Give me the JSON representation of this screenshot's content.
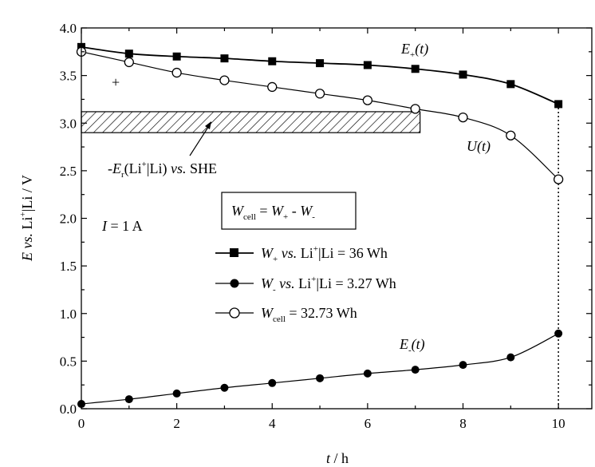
{
  "chart_data": {
    "type": "line",
    "xlabel": {
      "var": "t",
      "unit": " / h"
    },
    "ylabel": {
      "var1": "E",
      "vs": " vs. ",
      "li": "Li",
      "sup": "+",
      "rest": "|Li / V"
    },
    "xlim": [
      0,
      10.7
    ],
    "ylim": [
      0,
      4.0
    ],
    "xticks": [
      0,
      2,
      4,
      6,
      8,
      10
    ],
    "yticks": [
      "0.0",
      "0.5",
      "1.0",
      "1.5",
      "2.0",
      "2.5",
      "3.0",
      "3.5",
      "4.0"
    ],
    "series": [
      {
        "key": "eplus",
        "marker": "square",
        "x": [
          0,
          1,
          2,
          3,
          4,
          5,
          6,
          7,
          8,
          9,
          10
        ],
        "y": [
          3.8,
          3.73,
          3.7,
          3.68,
          3.65,
          3.63,
          3.61,
          3.57,
          3.51,
          3.41,
          3.2
        ]
      },
      {
        "key": "u",
        "marker": "circle-open",
        "x": [
          0,
          1,
          2,
          3,
          4,
          5,
          6,
          7,
          8,
          9,
          10
        ],
        "y": [
          3.75,
          3.64,
          3.53,
          3.45,
          3.38,
          3.31,
          3.24,
          3.15,
          3.06,
          2.87,
          2.41
        ]
      },
      {
        "key": "eminus",
        "marker": "circle-filled",
        "x": [
          0,
          1,
          2,
          3,
          4,
          5,
          6,
          7,
          8,
          9,
          10
        ],
        "y": [
          0.05,
          0.1,
          0.16,
          0.22,
          0.27,
          0.32,
          0.37,
          0.41,
          0.46,
          0.54,
          0.79
        ]
      }
    ],
    "band": {
      "x": [
        0,
        7.1
      ],
      "y": [
        2.9,
        3.12
      ]
    },
    "vline": {
      "x": 10,
      "y": [
        0,
        3.2
      ]
    },
    "stray_plus": {
      "x": 0.72,
      "y": 3.42,
      "text": "+"
    },
    "annotations": {
      "eplus": {
        "main": "E",
        "sub": "+",
        "rest": "(t)"
      },
      "u": {
        "main": "U",
        "rest": "(t)"
      },
      "eminus": {
        "main": "E",
        "sub": "-",
        "rest": "(t)"
      },
      "er": {
        "pre": "-",
        "main": "E",
        "sub": "r",
        "li": "(Li",
        "sup": "+",
        "rest": "|Li) ",
        "vs": "vs.",
        "she": " SHE"
      },
      "current": {
        "main": "I",
        "rest": " = 1 A"
      },
      "formula": {
        "w1": "W",
        "s1": "cell",
        "eq": " = ",
        "w2": "W",
        "s2": "+",
        "minus": " - ",
        "w3": "W",
        "s3": "-"
      }
    },
    "legend": {
      "placement": "center-left",
      "entries": [
        {
          "key": "eplus",
          "marker": "square",
          "w": "W",
          "sub": "+",
          "vs": " vs.",
          "li": " Li",
          "sup": "+",
          "rest": "|Li = 36 Wh"
        },
        {
          "key": "eminus",
          "marker": "circle-filled",
          "w": "W",
          "sub": "-",
          "vs": " vs.",
          "li": " Li",
          "sup": "+",
          "rest": "|Li = 3.27 Wh"
        },
        {
          "key": "u",
          "marker": "circle-open",
          "w": "W",
          "sub": "cell",
          "vs": "",
          "li": "",
          "sup": "",
          "rest": " = 32.73 Wh"
        }
      ]
    }
  }
}
